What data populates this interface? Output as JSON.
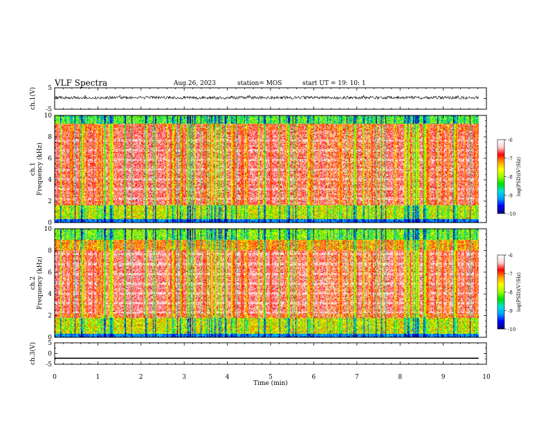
{
  "header": {
    "title": "VLF Spectra",
    "date": "Aug.26, 2023",
    "station": "station= MOS",
    "start": "start  UT =   19: 10: 1"
  },
  "colors": {
    "scale": [
      "#000080",
      "#0000ff",
      "#00a0ff",
      "#00e0e0",
      "#00e000",
      "#a0ff00",
      "#ffff00",
      "#ffa000",
      "#ff0000",
      "#ffd0d0",
      "#ffffff"
    ]
  },
  "chart_data": [
    {
      "type": "line",
      "name": "ch1-waveform",
      "ylabel": "ch.1(V)",
      "ylim": [
        -5,
        5
      ],
      "yticks": [
        "5",
        "-5"
      ],
      "x_range": [
        0,
        9.82
      ],
      "level": 0.4,
      "description_of_signal": "noisy baseline"
    },
    {
      "type": "heatmap",
      "name": "ch1-spectrogram",
      "ylabel": "ch.1\nFrequency (kHz)",
      "ylim": [
        0,
        10
      ],
      "yticks": [
        "0",
        "2",
        "4",
        "6",
        "8",
        "10"
      ],
      "x_range": [
        0,
        9.82
      ],
      "bands_khz": {
        "high_intensity": [
          1.6,
          9.2
        ],
        "bright_band": [
          0.4,
          1.6
        ],
        "top_band": [
          9.2,
          10
        ]
      },
      "colorbar": {
        "label": "log(PSD)(V²/Hz)",
        "ticks": [
          "-6",
          "-7",
          "-8",
          "-9",
          "-10"
        ],
        "range": [
          -10,
          -6
        ]
      }
    },
    {
      "type": "heatmap",
      "name": "ch2-spectrogram",
      "ylabel": "ch.2\nFrequency (kHz)",
      "ylim": [
        0,
        10
      ],
      "yticks": [
        "0",
        "2",
        "4",
        "6",
        "8",
        "10"
      ],
      "x_range": [
        0,
        9.82
      ],
      "colorbar": {
        "label": "log(PSD)(V²/Hz)",
        "ticks": [
          "-6",
          "-7",
          "-8",
          "-9",
          "-10"
        ],
        "range": [
          -10,
          -6
        ]
      }
    },
    {
      "type": "line",
      "name": "ch3-waveform",
      "ylabel": "ch.3(V)",
      "ylim": [
        -5,
        5
      ],
      "yticks": [
        "5",
        "0",
        "-5"
      ],
      "x_range": [
        0,
        9.82
      ],
      "level": -2.2
    }
  ],
  "xaxis": {
    "label": "Time  (min)",
    "ticks": [
      "0",
      "1",
      "2",
      "3",
      "4",
      "5",
      "6",
      "7",
      "8",
      "9",
      "10"
    ],
    "range": [
      0,
      10
    ]
  }
}
